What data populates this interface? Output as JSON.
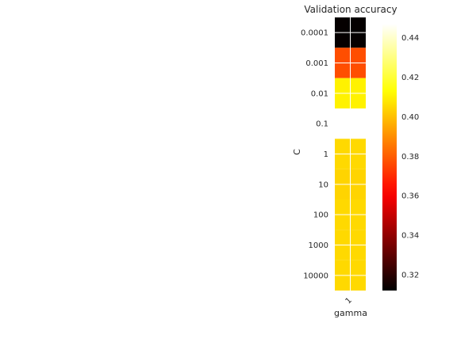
{
  "chart_data": {
    "type": "heatmap",
    "title": "Validation accuracy",
    "xlabel": "gamma",
    "ylabel": "C",
    "x_categories": [
      "1"
    ],
    "y_categories": [
      "0.0001",
      "0.001",
      "0.01",
      "0.1",
      "1",
      "10",
      "100",
      "1000",
      "10000"
    ],
    "values": [
      [
        0.313
      ],
      [
        0.377
      ],
      [
        0.41
      ],
      [
        null
      ],
      [
        0.405
      ],
      [
        0.404
      ],
      [
        0.405
      ],
      [
        0.405
      ],
      [
        0.405
      ]
    ],
    "colormap": "hot",
    "vmin": 0.312,
    "vmax": 0.447,
    "colorbar_ticks": [
      "0.32",
      "0.34",
      "0.36",
      "0.38",
      "0.40",
      "0.42",
      "0.44"
    ],
    "grid": true
  }
}
